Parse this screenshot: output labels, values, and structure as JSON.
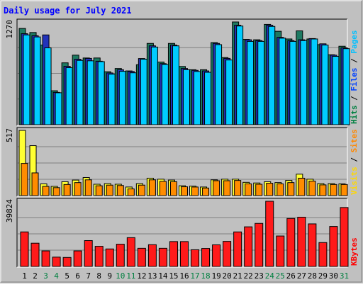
{
  "chart_data": {
    "type": "bar",
    "title": "Daily usage for July 2021",
    "categories": [
      "1",
      "2",
      "3",
      "4",
      "5",
      "6",
      "7",
      "8",
      "9",
      "10",
      "11",
      "12",
      "13",
      "14",
      "15",
      "16",
      "17",
      "18",
      "19",
      "20",
      "21",
      "22",
      "23",
      "24",
      "25",
      "26",
      "27",
      "28",
      "29",
      "30",
      "31"
    ],
    "weekend_days": [
      "3",
      "4",
      "10",
      "11",
      "17",
      "18",
      "24",
      "25",
      "31"
    ],
    "panels": [
      {
        "name": "top",
        "y_max_label": "1270",
        "ylim": [
          0,
          1270
        ],
        "legend": [
          {
            "text": "Hits",
            "color": "#008040"
          },
          {
            "text": " / ",
            "color": "#000000"
          },
          {
            "text": "Files",
            "color": "#0040ff"
          },
          {
            "text": " / ",
            "color": "#000000"
          },
          {
            "text": "Pages",
            "color": "#00c0ff"
          }
        ],
        "series": [
          {
            "name": "Hits",
            "color": "#1e7a62",
            "values": [
              1190,
              1140,
              985,
              420,
              765,
              860,
              825,
              825,
              655,
              695,
              665,
              742,
              1005,
              775,
              1005,
              720,
              680,
              680,
              1015,
              830,
              1270,
              1055,
              1050,
              1240,
              1155,
              1060,
              1160,
              1060,
              990,
              865,
              970
            ]
          },
          {
            "name": "Files",
            "color": "#2233bb",
            "values": [
              1125,
              1100,
              1110,
              400,
              722,
              810,
              820,
              785,
              640,
              680,
              658,
              818,
              975,
              755,
              985,
              695,
              672,
              665,
              1005,
              820,
              1230,
              1050,
              1040,
              1230,
              1080,
              1040,
              1050,
              1065,
              1000,
              860,
              950
            ]
          },
          {
            "name": "Pages",
            "color": "#00ccff",
            "values": [
              1110,
              1085,
              950,
              395,
              705,
              795,
              790,
              780,
              625,
              660,
              642,
              810,
              960,
              745,
              975,
              680,
              658,
              648,
              990,
              800,
              1220,
              1030,
              1030,
              1215,
              1070,
              1030,
              1040,
              1060,
              985,
              845,
              940
            ]
          }
        ]
      },
      {
        "name": "middle",
        "y_max_label": "517",
        "ylim": [
          0,
          517
        ],
        "legend": [
          {
            "text": "Visits",
            "color": "#ffd800"
          },
          {
            "text": " / ",
            "color": "#000000"
          },
          {
            "text": "Sites",
            "color": "#ff8800"
          }
        ],
        "series": [
          {
            "name": "Visits",
            "color": "#ffff33",
            "values": [
              517,
              396,
              93,
              73,
              110,
              123,
              143,
              90,
              95,
              90,
              68,
              95,
              138,
              130,
              123,
              78,
              75,
              68,
              125,
              130,
              130,
              105,
              100,
              110,
              103,
              120,
              170,
              130,
              95,
              95,
              93
            ]
          },
          {
            "name": "Sites",
            "color": "#ff8c00",
            "values": [
              255,
              180,
              73,
              63,
              88,
              103,
              125,
              78,
              83,
              80,
              53,
              83,
              125,
              113,
              110,
              70,
              68,
              60,
              118,
              118,
              120,
              93,
              90,
              98,
              93,
              103,
              138,
              115,
              85,
              88,
              88
            ]
          }
        ]
      },
      {
        "name": "bottom",
        "y_max_label": "39824",
        "ylim": [
          0,
          39824
        ],
        "legend": [
          {
            "text": "KBytes",
            "color": "#ff0000"
          }
        ],
        "series": [
          {
            "name": "KBytes",
            "color": "#ff1a1a",
            "values": [
              21100,
              14200,
              9500,
              5700,
              5500,
              9500,
              15800,
              12300,
              10700,
              13600,
              17600,
              11100,
              13300,
              11100,
              15200,
              15200,
              10200,
              11000,
              13200,
              15300,
              21100,
              24200,
              26300,
              39824,
              18600,
              29300,
              30100,
              26000,
              14600,
              24400,
              36000
            ]
          }
        ]
      }
    ]
  }
}
